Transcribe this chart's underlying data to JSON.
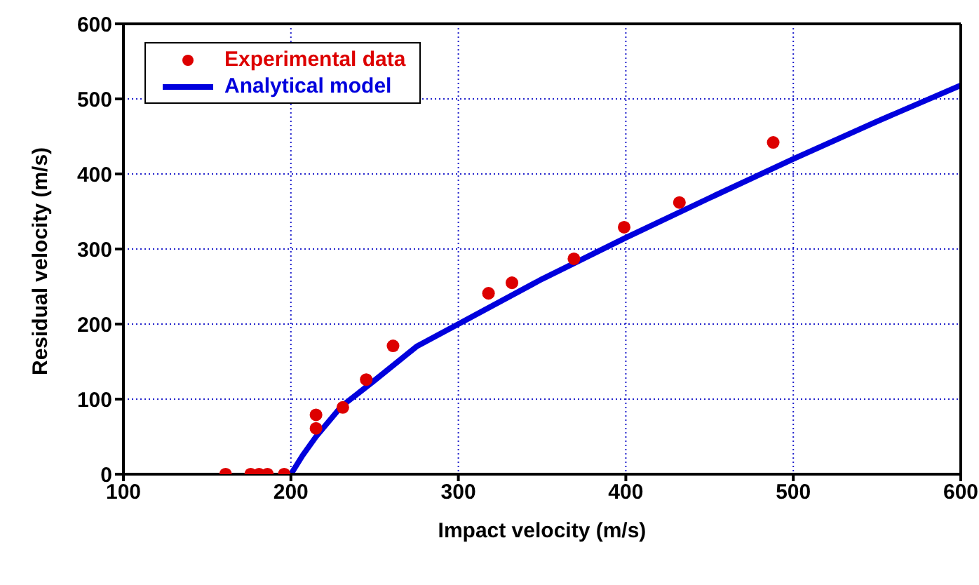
{
  "chart_data": {
    "type": "scatter",
    "xlabel": "Impact velocity (m/s)",
    "ylabel": "Residual velocity (m/s)",
    "xlim": [
      100,
      600
    ],
    "xticks": [
      100,
      200,
      300,
      400,
      500,
      600
    ],
    "ylim": [
      0,
      600
    ],
    "yticks": [
      0,
      100,
      200,
      300,
      400,
      500,
      600
    ],
    "grid": true,
    "legend": "top left",
    "series": [
      {
        "name": "Experimental data",
        "marker": "circle",
        "color": "#dd0000",
        "x": [
          161,
          176,
          181,
          186,
          196,
          215,
          215,
          231,
          245,
          261,
          318,
          332,
          369,
          399,
          432,
          488
        ],
        "values": [
          0,
          0,
          0,
          0,
          0,
          79,
          61,
          89,
          126,
          171,
          241,
          255,
          287,
          329,
          362,
          442
        ]
      },
      {
        "name": "Analytical model",
        "type": "line",
        "marker": "none",
        "line_style": "solid",
        "color": "#0000dd",
        "x": [
          200,
          207,
          215,
          230,
          250,
          275,
          300,
          350,
          400,
          450,
          500,
          550,
          600
        ],
        "values": [
          0,
          25,
          50,
          90,
          125,
          170,
          200,
          260,
          315,
          368,
          420,
          470,
          518
        ]
      }
    ]
  }
}
